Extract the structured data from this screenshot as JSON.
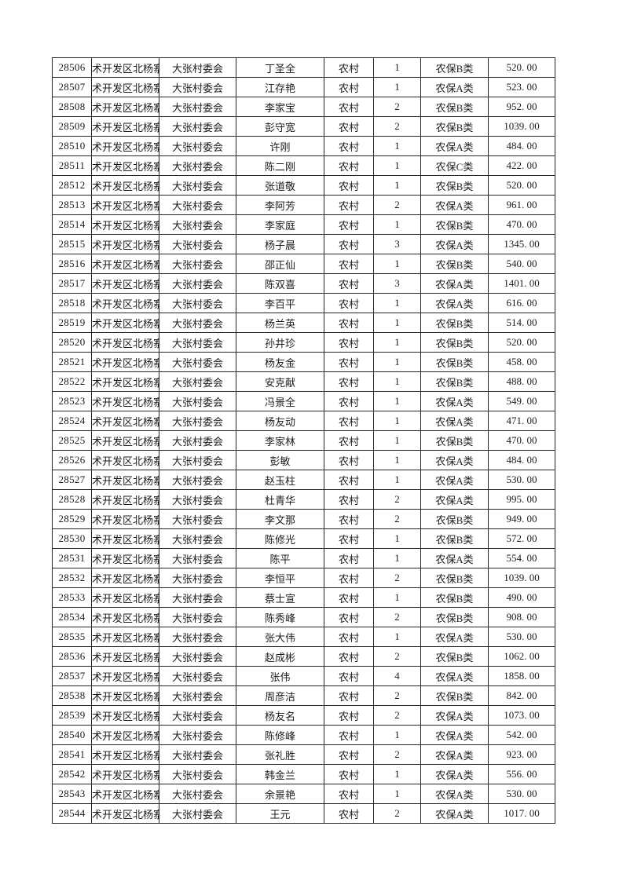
{
  "page": {
    "kind": "printed spreadsheet page (no visible header row, table continued from previous page)"
  },
  "colors": {
    "page_background": "#ffffff",
    "grid_border": "#262626",
    "text": "#1c1c1c"
  },
  "table": {
    "rows": [
      [
        "28506",
        "术开发区北杨寨",
        "大张村委会",
        "丁圣全",
        "农村",
        "1",
        "农保B类",
        "520. 00"
      ],
      [
        "28507",
        "术开发区北杨寨",
        "大张村委会",
        "江存艳",
        "农村",
        "1",
        "农保A类",
        "523. 00"
      ],
      [
        "28508",
        "术开发区北杨寨",
        "大张村委会",
        "李家宝",
        "农村",
        "2",
        "农保B类",
        "952. 00"
      ],
      [
        "28509",
        "术开发区北杨寨",
        "大张村委会",
        "彭守宽",
        "农村",
        "2",
        "农保B类",
        "1039. 00"
      ],
      [
        "28510",
        "术开发区北杨寨",
        "大张村委会",
        "许刚",
        "农村",
        "1",
        "农保A类",
        "484. 00"
      ],
      [
        "28511",
        "术开发区北杨寨",
        "大张村委会",
        "陈二刚",
        "农村",
        "1",
        "农保C类",
        "422. 00"
      ],
      [
        "28512",
        "术开发区北杨寨",
        "大张村委会",
        "张道敬",
        "农村",
        "1",
        "农保B类",
        "520. 00"
      ],
      [
        "28513",
        "术开发区北杨寨",
        "大张村委会",
        "李阿芳",
        "农村",
        "2",
        "农保A类",
        "961. 00"
      ],
      [
        "28514",
        "术开发区北杨寨",
        "大张村委会",
        "李家庭",
        "农村",
        "1",
        "农保B类",
        "470. 00"
      ],
      [
        "28515",
        "术开发区北杨寨",
        "大张村委会",
        "杨子晨",
        "农村",
        "3",
        "农保A类",
        "1345. 00"
      ],
      [
        "28516",
        "术开发区北杨寨",
        "大张村委会",
        "邵正仙",
        "农村",
        "1",
        "农保B类",
        "540. 00"
      ],
      [
        "28517",
        "术开发区北杨寨",
        "大张村委会",
        "陈双喜",
        "农村",
        "3",
        "农保A类",
        "1401. 00"
      ],
      [
        "28518",
        "术开发区北杨寨",
        "大张村委会",
        "李百平",
        "农村",
        "1",
        "农保A类",
        "616. 00"
      ],
      [
        "28519",
        "术开发区北杨寨",
        "大张村委会",
        "杨兰英",
        "农村",
        "1",
        "农保B类",
        "514. 00"
      ],
      [
        "28520",
        "术开发区北杨寨",
        "大张村委会",
        "孙井珍",
        "农村",
        "1",
        "农保B类",
        "520. 00"
      ],
      [
        "28521",
        "术开发区北杨寨",
        "大张村委会",
        "杨友金",
        "农村",
        "1",
        "农保B类",
        "458. 00"
      ],
      [
        "28522",
        "术开发区北杨寨",
        "大张村委会",
        "安克献",
        "农村",
        "1",
        "农保B类",
        "488. 00"
      ],
      [
        "28523",
        "术开发区北杨寨",
        "大张村委会",
        "冯景全",
        "农村",
        "1",
        "农保A类",
        "549. 00"
      ],
      [
        "28524",
        "术开发区北杨寨",
        "大张村委会",
        "杨友动",
        "农村",
        "1",
        "农保A类",
        "471. 00"
      ],
      [
        "28525",
        "术开发区北杨寨",
        "大张村委会",
        "李家林",
        "农村",
        "1",
        "农保B类",
        "470. 00"
      ],
      [
        "28526",
        "术开发区北杨寨",
        "大张村委会",
        "彭敏",
        "农村",
        "1",
        "农保A类",
        "484. 00"
      ],
      [
        "28527",
        "术开发区北杨寨",
        "大张村委会",
        "赵玉柱",
        "农村",
        "1",
        "农保A类",
        "530. 00"
      ],
      [
        "28528",
        "术开发区北杨寨",
        "大张村委会",
        "杜青华",
        "农村",
        "2",
        "农保A类",
        "995. 00"
      ],
      [
        "28529",
        "术开发区北杨寨",
        "大张村委会",
        "李文那",
        "农村",
        "2",
        "农保B类",
        "949. 00"
      ],
      [
        "28530",
        "术开发区北杨寨",
        "大张村委会",
        "陈修光",
        "农村",
        "1",
        "农保B类",
        "572. 00"
      ],
      [
        "28531",
        "术开发区北杨寨",
        "大张村委会",
        "陈平",
        "农村",
        "1",
        "农保A类",
        "554. 00"
      ],
      [
        "28532",
        "术开发区北杨寨",
        "大张村委会",
        "李恒平",
        "农村",
        "2",
        "农保B类",
        "1039. 00"
      ],
      [
        "28533",
        "术开发区北杨寨",
        "大张村委会",
        "蔡士宣",
        "农村",
        "1",
        "农保B类",
        "490. 00"
      ],
      [
        "28534",
        "术开发区北杨寨",
        "大张村委会",
        "陈秀峰",
        "农村",
        "2",
        "农保B类",
        "908. 00"
      ],
      [
        "28535",
        "术开发区北杨寨",
        "大张村委会",
        "张大伟",
        "农村",
        "1",
        "农保A类",
        "530. 00"
      ],
      [
        "28536",
        "术开发区北杨寨",
        "大张村委会",
        "赵成彬",
        "农村",
        "2",
        "农保B类",
        "1062. 00"
      ],
      [
        "28537",
        "术开发区北杨寨",
        "大张村委会",
        "张伟",
        "农村",
        "4",
        "农保A类",
        "1858. 00"
      ],
      [
        "28538",
        "术开发区北杨寨",
        "大张村委会",
        "周彦洁",
        "农村",
        "2",
        "农保B类",
        "842. 00"
      ],
      [
        "28539",
        "术开发区北杨寨",
        "大张村委会",
        "杨友名",
        "农村",
        "2",
        "农保A类",
        "1073. 00"
      ],
      [
        "28540",
        "术开发区北杨寨",
        "大张村委会",
        "陈修峰",
        "农村",
        "1",
        "农保A类",
        "542. 00"
      ],
      [
        "28541",
        "术开发区北杨寨",
        "大张村委会",
        "张礼胜",
        "农村",
        "2",
        "农保A类",
        "923. 00"
      ],
      [
        "28542",
        "术开发区北杨寨",
        "大张村委会",
        "韩金兰",
        "农村",
        "1",
        "农保A类",
        "556. 00"
      ],
      [
        "28543",
        "术开发区北杨寨",
        "大张村委会",
        "余景艳",
        "农村",
        "1",
        "农保A类",
        "530. 00"
      ],
      [
        "28544",
        "术开发区北杨寨",
        "大张村委会",
        "王元",
        "农村",
        "2",
        "农保A类",
        "1017. 00"
      ]
    ]
  }
}
